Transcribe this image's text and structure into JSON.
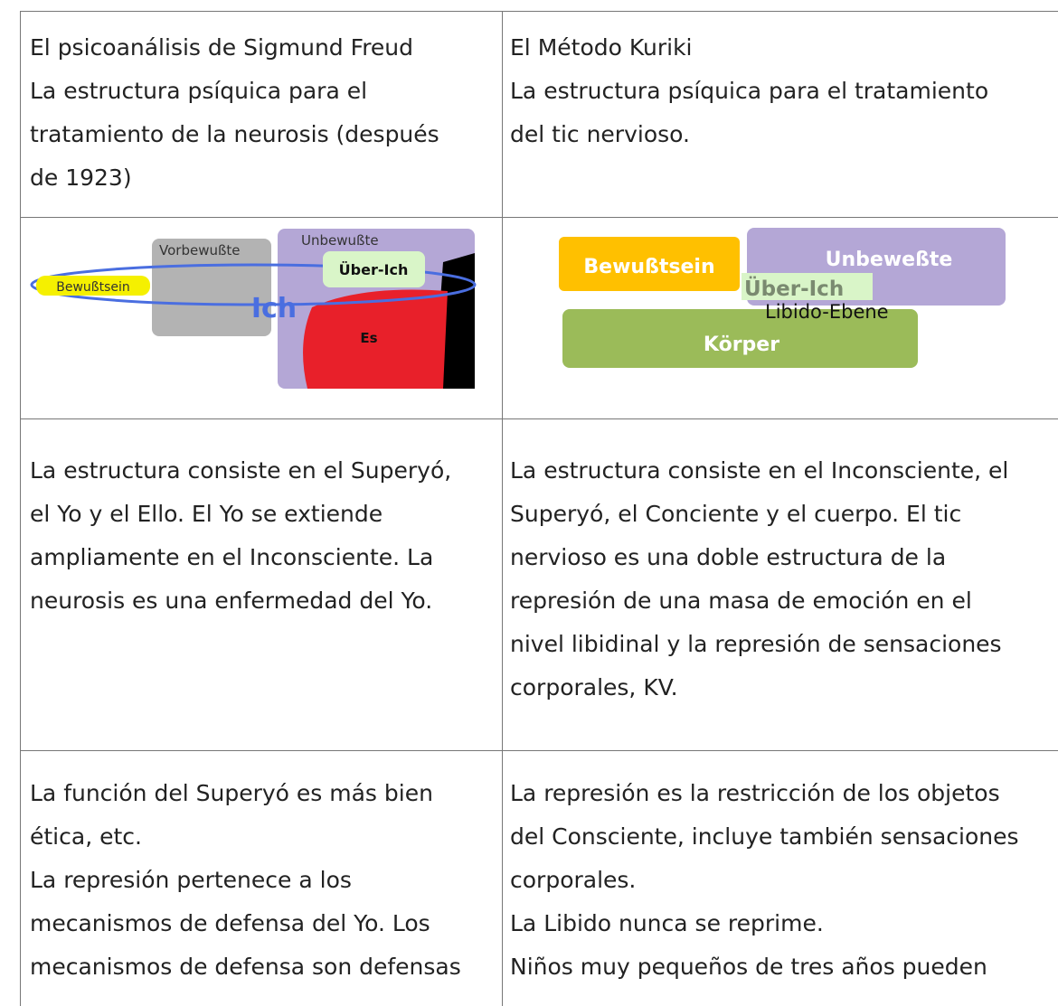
{
  "table": {
    "rows": [
      [
        [
          "El psicoanálisis de Sigmund Freud",
          "La estructura psíquica para el",
          "tratamiento de la neurosis (después",
          "de 1923)"
        ],
        [
          "El Método Kuriki",
          "La estructura psíquica para el tratamiento",
          "del tic nervioso."
        ]
      ],
      [
        [],
        []
      ],
      [
        [
          "La estructura consiste en el Superyó,",
          "el Yo y el Ello. El Yo se extiende",
          "ampliamente en el Inconsciente. La",
          "neurosis es una enfermedad del Yo."
        ],
        [
          "La estructura consiste en el Inconsciente, el",
          "Superyó, el Conciente y el cuerpo. El tic",
          "nervioso es una doble estructura de la",
          "represión de una masa de emoción en el",
          "nivel libidinal y la represión de sensaciones",
          "corporales, KV."
        ]
      ],
      [
        [
          "La función del Superyó es más bien",
          "ética, etc.",
          "La represión pertenece a los",
          "mecanismos de defensa del Yo. Los",
          "mecanismos de defensa son defensas"
        ],
        [
          "La represión es la restricción de los objetos",
          "del Consciente, incluye también sensaciones",
          "corporales.",
          "La Libido nunca se reprime.",
          "Niños muy pequeños de tres años pueden"
        ]
      ]
    ]
  },
  "freud_diagram": {
    "vorbewusste": "Vorbewußte",
    "unbewusste": "Unbewußte",
    "ueber_ich": "Über-Ich",
    "bewusstsein": "Bewußtsein",
    "ich": "Ich",
    "es": "Es"
  },
  "kuriki_diagram": {
    "bewusstsein": "Bewußtsein",
    "unbewusste": "Unbeweßte",
    "ueber_ich": "Über-Ich",
    "libido": "Libido-Ebene",
    "koerper": "Körper"
  }
}
